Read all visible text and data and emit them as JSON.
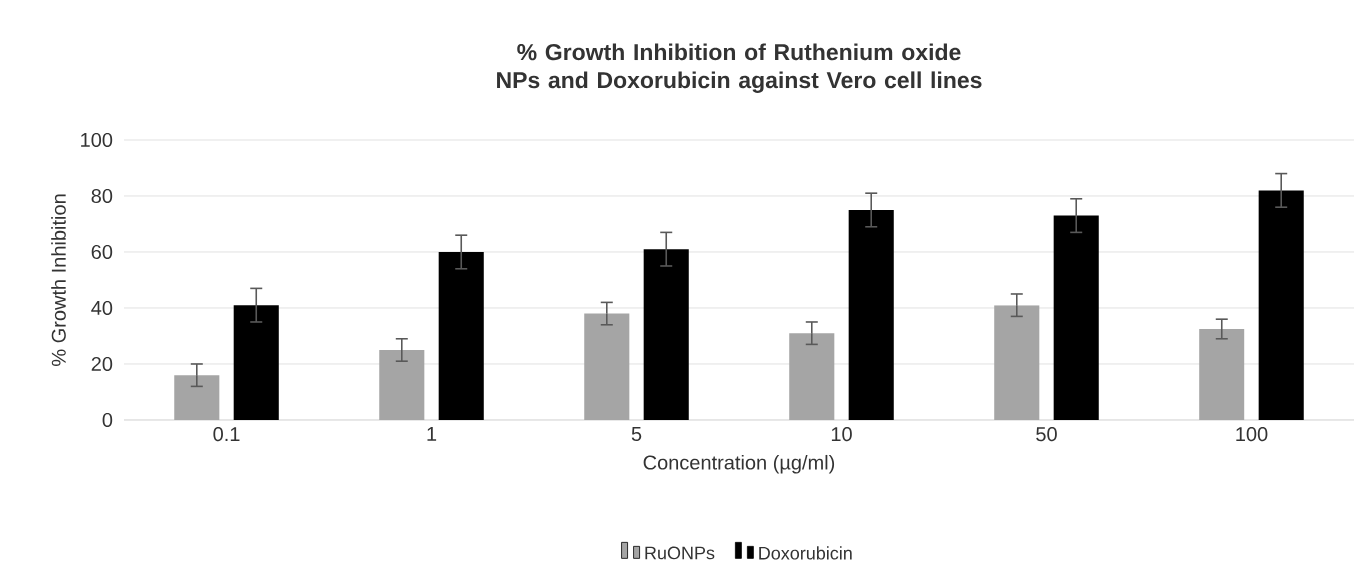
{
  "chart_data": {
    "type": "bar",
    "title": "% Growth Inhibition of Ruthenium oxide NPs and Doxorubicin against Vero cell lines",
    "xlabel": "Concentration (µg/ml)",
    "ylabel": "% Growth Inhibition",
    "categories": [
      "0.1",
      "1",
      "5",
      "10",
      "50",
      "100"
    ],
    "series": [
      {
        "name": "RuONPs",
        "color": "#a5a5a5",
        "values": [
          16,
          25,
          38,
          31,
          41,
          32.5
        ],
        "errors": [
          4,
          4,
          4,
          4,
          4,
          3.5
        ]
      },
      {
        "name": "Doxorubicin",
        "color": "#000000",
        "values": [
          41,
          60,
          61,
          75,
          73,
          82
        ],
        "errors": [
          6,
          6,
          6,
          6,
          6,
          6
        ]
      }
    ],
    "ylim": [
      0,
      100
    ],
    "yticks": [
      0,
      20,
      40,
      60,
      80,
      100
    ],
    "grid": "y",
    "legend": "bottom"
  }
}
